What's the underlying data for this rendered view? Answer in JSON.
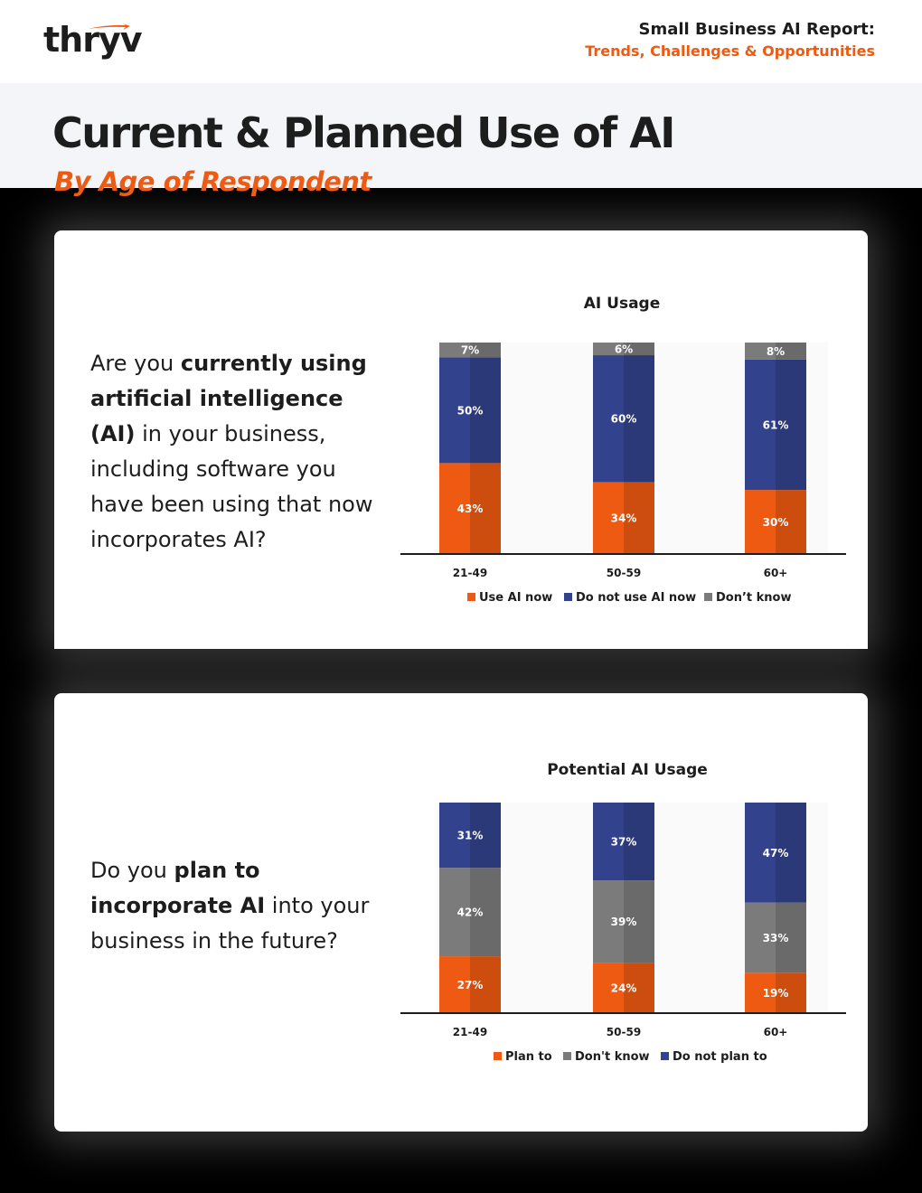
{
  "header": {
    "logo_text": "thryv",
    "report_title": "Small Business AI Report:",
    "report_subtitle": "Trends, Challenges & Opportunities"
  },
  "page": {
    "title": "Current & Planned Use of AI",
    "subtitle": "By Age of Respondent"
  },
  "colors": {
    "orange": "#ee5a12",
    "navy": "#33428d",
    "gray": "#7b7b7b",
    "text": "#1d1d1d"
  },
  "panel1": {
    "question_parts": [
      "Are you ",
      "currently using artificial intelligence (AI)",
      " in your business, including software you have been using that now incorporates AI?"
    ]
  },
  "panel2": {
    "question_parts": [
      "Do you ",
      "plan to incorporate AI",
      " into your business in the future?"
    ]
  },
  "chart_data": [
    {
      "type": "bar",
      "stacked": true,
      "title": "AI Usage",
      "categories": [
        "21-49",
        "50-59",
        "60+"
      ],
      "series": [
        {
          "name": "Use AI now",
          "values": [
            43,
            34,
            30
          ],
          "color": "#ee5a12",
          "labels": [
            "43%",
            "34%",
            "30%"
          ]
        },
        {
          "name": "Do not use AI now",
          "values": [
            50,
            60,
            61
          ],
          "color": "#33428d",
          "labels": [
            "50%",
            "60%",
            "61%"
          ]
        },
        {
          "name": "Don't know",
          "values": [
            7,
            6,
            8
          ],
          "color": "#7b7b7b",
          "labels": [
            "7%",
            "6%",
            "8%"
          ]
        }
      ],
      "legend": [
        "Use AI now",
        "Do not use AI now",
        "Don’t know"
      ],
      "ylim": [
        0,
        100
      ],
      "grid": false,
      "legend_position": "bottom"
    },
    {
      "type": "bar",
      "stacked": true,
      "title": "Potential AI Usage",
      "categories": [
        "21-49",
        "50-59",
        "60+"
      ],
      "series": [
        {
          "name": "Plan to",
          "values": [
            27,
            24,
            19
          ],
          "color": "#ee5a12",
          "labels": [
            "27%",
            "24%",
            "19%"
          ]
        },
        {
          "name": "Don't know",
          "values": [
            42,
            39,
            33
          ],
          "color": "#7b7b7b",
          "labels": [
            "42%",
            "39%",
            "33%"
          ]
        },
        {
          "name": "Do not plan to",
          "values": [
            31,
            37,
            47
          ],
          "color": "#33428d",
          "labels": [
            "31%",
            "37%",
            "47%"
          ]
        }
      ],
      "legend": [
        "Plan to",
        "Don't know",
        "Do not plan to"
      ],
      "ylim": [
        0,
        100
      ],
      "grid": false,
      "legend_position": "bottom"
    }
  ]
}
